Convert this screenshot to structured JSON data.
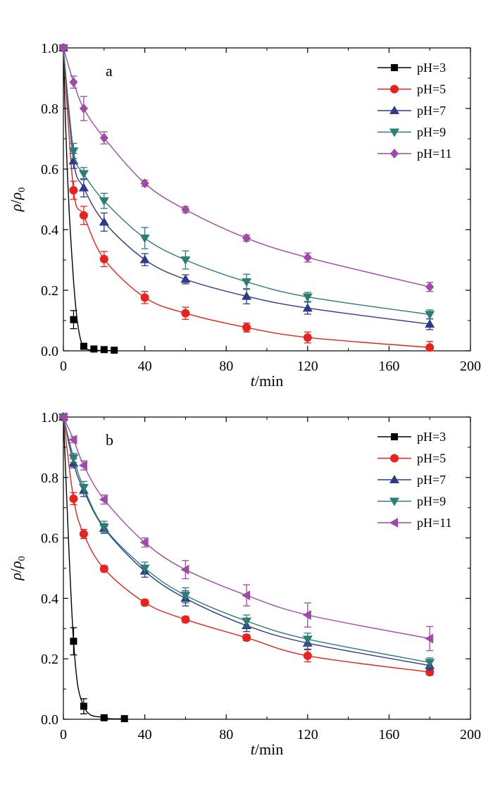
{
  "chart_data": [
    {
      "type": "line",
      "panel_label": "a",
      "xlabel_italic": "t",
      "xlabel_unit": "/min",
      "ylabel_num": "ρ",
      "ylabel_den": "ρ",
      "ylabel_den_sub": "0",
      "xlim": [
        0,
        200
      ],
      "ylim": [
        0,
        1.0
      ],
      "xticks": [
        0,
        40,
        80,
        120,
        160,
        200
      ],
      "xtick_labels": [
        "0",
        "40",
        "80",
        "120",
        "160",
        "200"
      ],
      "yticks": [
        0,
        0.2,
        0.4,
        0.6,
        0.8,
        1.0
      ],
      "ytick_labels": [
        "0.0",
        "0.2",
        "0.4",
        "0.6",
        "0.8",
        "1.0"
      ],
      "legend_position": "top-right",
      "series": [
        {
          "name": "pH=3",
          "color": "#000000",
          "marker": "square",
          "x": [
            0,
            5,
            10,
            15,
            20,
            25
          ],
          "y": [
            1.0,
            0.103,
            0.015,
            0.006,
            0.004,
            0.002
          ],
          "err": [
            0,
            0.03,
            0.008,
            0,
            0,
            0
          ],
          "curve_x": [
            0,
            1,
            2,
            3,
            4,
            5,
            6,
            7,
            8,
            9,
            10,
            12,
            15,
            20,
            25
          ],
          "curve_y": [
            1.0,
            0.76,
            0.58,
            0.44,
            0.33,
            0.23,
            0.15,
            0.09,
            0.05,
            0.025,
            0.012,
            0.004,
            0.002,
            0.001,
            0.001
          ]
        },
        {
          "name": "pH=5",
          "color": "#e8231f",
          "marker": "circle",
          "x": [
            0,
            5,
            10,
            20,
            40,
            60,
            90,
            120,
            180
          ],
          "y": [
            1.0,
            0.53,
            0.447,
            0.303,
            0.176,
            0.124,
            0.077,
            0.044,
            0.011
          ],
          "err": [
            0,
            0.03,
            0.03,
            0.025,
            0.02,
            0.02,
            0.015,
            0.018,
            0.02
          ]
        },
        {
          "name": "pH=7",
          "color": "#2e3a8e",
          "marker": "triangle-up",
          "x": [
            0,
            5,
            10,
            20,
            40,
            60,
            90,
            120,
            180
          ],
          "y": [
            1.0,
            0.627,
            0.538,
            0.425,
            0.301,
            0.236,
            0.18,
            0.141,
            0.088
          ],
          "err": [
            0,
            0.025,
            0.03,
            0.03,
            0.02,
            0.015,
            0.025,
            0.02,
            0.018
          ]
        },
        {
          "name": "pH=9",
          "color": "#2c7d74",
          "marker": "triangle-down",
          "x": [
            0,
            5,
            10,
            20,
            40,
            60,
            90,
            120,
            180
          ],
          "y": [
            1.0,
            0.66,
            0.585,
            0.495,
            0.372,
            0.3,
            0.228,
            0.178,
            0.12
          ],
          "err": [
            0,
            0.025,
            0.02,
            0.025,
            0.035,
            0.03,
            0.025,
            0.015,
            0.015
          ]
        },
        {
          "name": "pH=11",
          "color": "#a04aa8",
          "marker": "diamond",
          "x": [
            0,
            5,
            10,
            20,
            40,
            60,
            90,
            120,
            180
          ],
          "y": [
            1.0,
            0.887,
            0.8,
            0.703,
            0.553,
            0.466,
            0.372,
            0.308,
            0.211
          ],
          "err": [
            0,
            0.02,
            0.04,
            0.02,
            0.01,
            0.01,
            0.01,
            0.015,
            0.015
          ]
        }
      ]
    },
    {
      "type": "line",
      "panel_label": "b",
      "xlabel_italic": "t",
      "xlabel_unit": "/min",
      "ylabel_num": "ρ",
      "ylabel_den": "ρ",
      "ylabel_den_sub": "0",
      "xlim": [
        0,
        200
      ],
      "ylim": [
        0,
        1.0
      ],
      "xticks": [
        0,
        40,
        80,
        120,
        160,
        200
      ],
      "xtick_labels": [
        "0",
        "40",
        "80",
        "120",
        "160",
        "200"
      ],
      "yticks": [
        0,
        0.2,
        0.4,
        0.6,
        0.8,
        1.0
      ],
      "ytick_labels": [
        "0.0",
        "0.2",
        "0.4",
        "0.6",
        "0.8",
        "1.0"
      ],
      "legend_position": "top-right",
      "series": [
        {
          "name": "pH=3",
          "color": "#000000",
          "marker": "square",
          "x": [
            0,
            5,
            10,
            20,
            30
          ],
          "y": [
            1.0,
            0.258,
            0.043,
            0.005,
            0.002
          ],
          "err": [
            0,
            0.045,
            0.025,
            0.005,
            0
          ]
        },
        {
          "name": "pH=5",
          "color": "#e8231f",
          "marker": "circle",
          "x": [
            0,
            5,
            10,
            20,
            40,
            60,
            90,
            120,
            180
          ],
          "y": [
            1.0,
            0.73,
            0.613,
            0.498,
            0.386,
            0.33,
            0.27,
            0.21,
            0.156
          ],
          "err": [
            0,
            0.02,
            0.015,
            0.01,
            0.01,
            0.01,
            0.01,
            0.02,
            0.01
          ]
        },
        {
          "name": "pH=7",
          "color": "#2e3a8e",
          "marker": "triangle-up",
          "x": [
            0,
            5,
            10,
            20,
            40,
            60,
            90,
            120,
            180
          ],
          "y": [
            1.0,
            0.847,
            0.757,
            0.632,
            0.49,
            0.4,
            0.31,
            0.252,
            0.178
          ],
          "err": [
            0,
            0.015,
            0.02,
            0.015,
            0.02,
            0.025,
            0.02,
            0.02,
            0.015
          ]
        },
        {
          "name": "pH=9",
          "color": "#2c7d74",
          "marker": "triangle-down",
          "x": [
            0,
            5,
            10,
            20,
            40,
            60,
            90,
            120,
            180
          ],
          "y": [
            1.0,
            0.865,
            0.767,
            0.635,
            0.5,
            0.41,
            0.325,
            0.265,
            0.188
          ],
          "err": [
            0,
            0.015,
            0.02,
            0.02,
            0.02,
            0.025,
            0.02,
            0.02,
            0.015
          ]
        },
        {
          "name": "pH=11",
          "color": "#a04aa8",
          "marker": "triangle-left",
          "x": [
            0,
            5,
            10,
            20,
            40,
            60,
            90,
            120,
            180
          ],
          "y": [
            1.0,
            0.925,
            0.84,
            0.727,
            0.585,
            0.495,
            0.41,
            0.345,
            0.267
          ],
          "err": [
            0,
            0.01,
            0.015,
            0.015,
            0.015,
            0.03,
            0.035,
            0.04,
            0.04
          ]
        }
      ]
    }
  ]
}
